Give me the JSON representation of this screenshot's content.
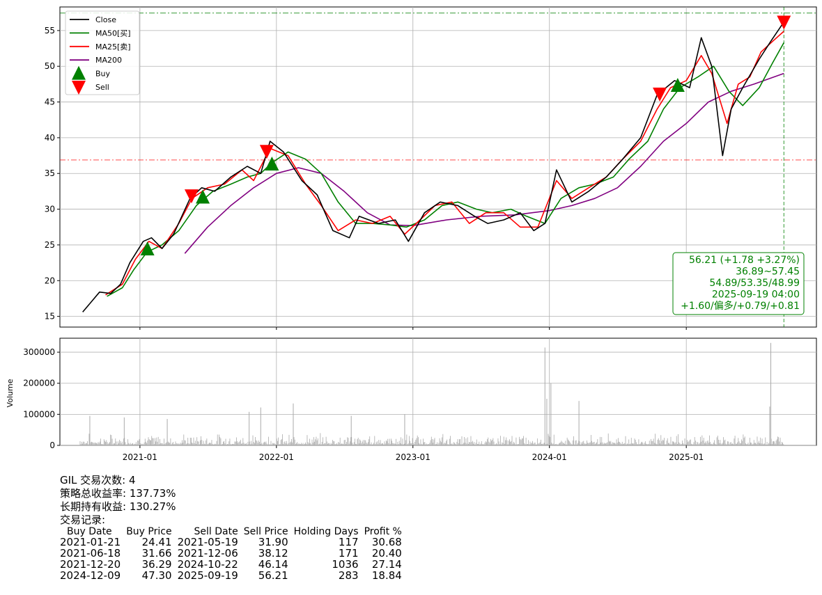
{
  "chart_data": [
    {
      "type": "line",
      "ticker_panel": "price",
      "y_ticks": [
        15,
        20,
        25,
        30,
        35,
        40,
        45,
        50,
        55
      ],
      "x_tick_labels": [
        "2021-01",
        "2022-01",
        "2023-01",
        "2024-01",
        "2025-01"
      ],
      "x_tick_dates": [
        "2021-01-01",
        "2022-01-01",
        "2023-01-01",
        "2024-01-01",
        "2025-01-01"
      ],
      "xlim": [
        "2020-06-01",
        "2025-12-15"
      ],
      "ylim": [
        13.5,
        58.3
      ],
      "grid": true,
      "legend_placement": "upper-left",
      "legend": [
        {
          "label": "Close",
          "color": "#000000",
          "kind": "line"
        },
        {
          "label": "MA50[买]",
          "color": "#008000",
          "kind": "line"
        },
        {
          "label": "MA25[卖]",
          "color": "#ff0000",
          "kind": "line"
        },
        {
          "label": "MA200",
          "color": "#800080",
          "kind": "line"
        },
        {
          "label": "Buy",
          "color": "#008000",
          "kind": "triangle-up"
        },
        {
          "label": "Sell",
          "color": "#ff0000",
          "kind": "triangle-down"
        }
      ],
      "series": [
        {
          "name": "Close",
          "color": "#000000",
          "x": [
            "2020-08-01",
            "2020-09-15",
            "2020-10-15",
            "2020-11-10",
            "2020-12-05",
            "2021-01-10",
            "2021-02-01",
            "2021-03-01",
            "2021-04-01",
            "2021-05-15",
            "2021-06-15",
            "2021-07-20",
            "2021-09-01",
            "2021-10-15",
            "2021-11-20",
            "2021-12-15",
            "2022-01-20",
            "2022-03-10",
            "2022-04-20",
            "2022-06-01",
            "2022-07-15",
            "2022-08-10",
            "2022-10-01",
            "2022-11-15",
            "2022-12-20",
            "2023-02-01",
            "2023-03-15",
            "2023-05-01",
            "2023-06-15",
            "2023-07-20",
            "2023-09-01",
            "2023-10-15",
            "2023-11-20",
            "2023-12-20",
            "2024-01-20",
            "2024-03-01",
            "2024-04-15",
            "2024-06-01",
            "2024-07-15",
            "2024-09-01",
            "2024-10-15",
            "2024-12-01",
            "2025-01-10",
            "2025-02-10",
            "2025-03-10",
            "2025-04-08",
            "2025-05-01",
            "2025-06-01",
            "2025-07-15",
            "2025-08-15",
            "2025-09-19"
          ],
          "values": [
            15.6,
            18.4,
            18.2,
            19.5,
            22.5,
            25.5,
            26,
            24.5,
            26.5,
            31.5,
            33,
            32.5,
            34.5,
            36,
            35,
            39.5,
            38,
            34,
            32,
            27,
            26,
            29,
            28,
            28.5,
            25.5,
            29.5,
            31,
            30.5,
            29,
            28,
            28.5,
            29.5,
            27,
            28,
            35.5,
            31,
            32.5,
            34.5,
            37,
            40,
            46,
            48,
            47,
            54,
            50,
            37.5,
            44,
            47,
            51,
            53.5,
            56.2
          ]
        },
        {
          "name": "MA50[买]",
          "color": "#008000",
          "x": [
            "2020-10-05",
            "2020-11-15",
            "2020-12-15",
            "2021-01-20",
            "2021-03-01",
            "2021-04-15",
            "2021-06-01",
            "2021-07-15",
            "2021-09-01",
            "2021-10-15",
            "2021-11-20",
            "2021-12-20",
            "2022-02-01",
            "2022-03-20",
            "2022-05-01",
            "2022-06-15",
            "2022-08-01",
            "2022-09-15",
            "2022-11-01",
            "2022-12-15",
            "2023-02-01",
            "2023-03-20",
            "2023-05-01",
            "2023-06-20",
            "2023-08-01",
            "2023-09-20",
            "2023-11-01",
            "2023-12-20",
            "2024-02-01",
            "2024-03-20",
            "2024-05-01",
            "2024-06-20",
            "2024-08-01",
            "2024-09-20",
            "2024-11-01",
            "2024-12-15",
            "2025-02-01",
            "2025-03-15",
            "2025-04-25",
            "2025-06-01",
            "2025-07-15",
            "2025-08-20",
            "2025-09-19"
          ],
          "values": [
            17.8,
            19,
            21.5,
            24,
            25,
            27,
            30.5,
            32.5,
            33.5,
            34.5,
            35,
            36.5,
            38,
            37,
            35,
            31,
            28,
            28,
            27.8,
            27.5,
            28.5,
            30.5,
            31,
            30,
            29.5,
            30,
            29,
            28,
            31.5,
            33,
            33.5,
            34.5,
            37,
            39.5,
            44,
            47,
            48.5,
            50,
            46.5,
            44.5,
            47,
            50.5,
            53.3
          ]
        },
        {
          "name": "MA25[卖]",
          "color": "#ff0000",
          "x": [
            "2020-10-01",
            "2020-11-15",
            "2020-12-20",
            "2021-01-25",
            "2021-03-01",
            "2021-04-15",
            "2021-05-20",
            "2021-07-01",
            "2021-08-15",
            "2021-10-01",
            "2021-11-01",
            "2021-12-15",
            "2022-02-01",
            "2022-03-20",
            "2022-05-01",
            "2022-06-15",
            "2022-08-01",
            "2022-09-15",
            "2022-11-01",
            "2022-12-10",
            "2023-01-20",
            "2023-03-01",
            "2023-04-15",
            "2023-06-01",
            "2023-07-15",
            "2023-09-01",
            "2023-10-15",
            "2023-12-01",
            "2024-01-20",
            "2024-03-01",
            "2024-04-15",
            "2024-06-01",
            "2024-07-15",
            "2024-09-01",
            "2024-10-15",
            "2024-11-20",
            "2025-01-01",
            "2025-02-10",
            "2025-03-10",
            "2025-04-20",
            "2025-05-20",
            "2025-06-20",
            "2025-07-20",
            "2025-08-20",
            "2025-09-19"
          ],
          "values": [
            18,
            19.5,
            23,
            25.5,
            24.5,
            28,
            31.5,
            33,
            33.5,
            35.5,
            34,
            38.5,
            37.5,
            33.5,
            30.5,
            27,
            28.5,
            28,
            29,
            26.5,
            28.5,
            30.5,
            31,
            28,
            29.5,
            29.5,
            27.5,
            27.5,
            34,
            31.5,
            33,
            34.5,
            37,
            39.5,
            44,
            47,
            48,
            51.5,
            49,
            42,
            47.5,
            48.5,
            52,
            53.5,
            54.9
          ]
        },
        {
          "name": "MA200",
          "color": "#800080",
          "x": [
            "2021-05-01",
            "2021-07-01",
            "2021-09-01",
            "2021-11-01",
            "2022-01-01",
            "2022-03-01",
            "2022-05-01",
            "2022-07-01",
            "2022-09-01",
            "2022-11-01",
            "2023-01-01",
            "2023-04-01",
            "2023-07-01",
            "2023-10-01",
            "2024-01-01",
            "2024-03-01",
            "2024-05-01",
            "2024-07-01",
            "2024-09-01",
            "2024-11-01",
            "2025-01-01",
            "2025-03-01",
            "2025-05-01",
            "2025-07-01",
            "2025-09-19"
          ],
          "values": [
            23.8,
            27.5,
            30.5,
            33,
            35,
            35.8,
            35,
            32.5,
            29.5,
            27.8,
            27.7,
            28.5,
            29,
            29.2,
            29.8,
            30.5,
            31.5,
            33,
            36,
            39.5,
            42,
            45,
            46.5,
            47.5,
            49
          ]
        }
      ],
      "markers": {
        "buy": [
          {
            "date": "2021-01-21",
            "price": 24.41
          },
          {
            "date": "2021-06-18",
            "price": 31.66
          },
          {
            "date": "2021-12-20",
            "price": 36.29
          },
          {
            "date": "2024-12-09",
            "price": 47.3
          }
        ],
        "sell": [
          {
            "date": "2021-05-19",
            "price": 31.9
          },
          {
            "date": "2021-12-06",
            "price": 38.12
          },
          {
            "date": "2024-10-22",
            "price": 46.14
          },
          {
            "date": "2025-09-19",
            "price": 56.21
          }
        ]
      },
      "reference_lines": {
        "h_green": 57.45,
        "h_red": 36.89,
        "v_green": "2025-09-19"
      },
      "info_box": [
        "56.21 (+1.78 +3.27%)",
        "36.89~57.45",
        "54.89/53.35/48.99",
        "2025-09-19 04:00",
        "+1.60/偏多/+0.79/+0.81"
      ]
    },
    {
      "type": "bar",
      "ticker_panel": "volume",
      "ylabel": "Volume",
      "y_ticks": [
        "0",
        "100000",
        "200000",
        "300000"
      ],
      "ylim": [
        0,
        345000
      ],
      "grid": true,
      "color": "#aaaaaa",
      "spikes": [
        {
          "date": "2020-08-20",
          "value": 95000
        },
        {
          "date": "2020-11-20",
          "value": 90000
        },
        {
          "date": "2021-03-15",
          "value": 85000
        },
        {
          "date": "2021-10-20",
          "value": 108000
        },
        {
          "date": "2021-11-20",
          "value": 122000
        },
        {
          "date": "2022-02-15",
          "value": 135000
        },
        {
          "date": "2022-07-20",
          "value": 95000
        },
        {
          "date": "2022-12-10",
          "value": 100000
        },
        {
          "date": "2023-12-20",
          "value": 315000
        },
        {
          "date": "2023-12-25",
          "value": 150000
        },
        {
          "date": "2024-01-05",
          "value": 200000
        },
        {
          "date": "2024-03-20",
          "value": 143000
        },
        {
          "date": "2025-08-15",
          "value": 330000
        },
        {
          "date": "2025-08-12",
          "value": 125000
        }
      ]
    }
  ],
  "report": {
    "title": "GIL 交易次数: 4",
    "total_return": "策略总收益率: 137.73%",
    "hold_return": "长期持有收益: 130.27%",
    "records_label": "交易记录:",
    "columns": [
      "Buy Date",
      "Buy Price",
      "Sell Date",
      "Sell Price",
      "Holding Days",
      "Profit %"
    ],
    "rows": [
      [
        "2021-01-21",
        "24.41",
        "2021-05-19",
        "31.90",
        "117",
        "30.68"
      ],
      [
        "2021-06-18",
        "31.66",
        "2021-12-06",
        "38.12",
        "171",
        "20.40"
      ],
      [
        "2021-12-20",
        "36.29",
        "2024-10-22",
        "46.14",
        "1036",
        "27.14"
      ],
      [
        "2024-12-09",
        "47.30",
        "2025-09-19",
        "56.21",
        "283",
        "18.84"
      ]
    ]
  }
}
